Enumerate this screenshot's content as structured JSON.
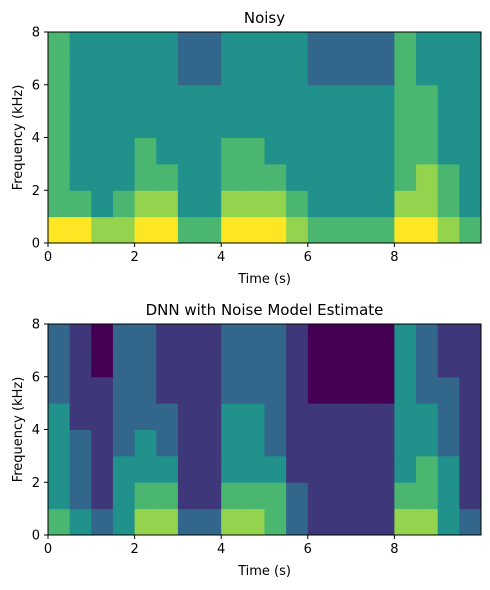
{
  "chart_data": [
    {
      "type": "spectrogram",
      "title": "Noisy",
      "xlabel": "Time (s)",
      "ylabel": "Frequency (kHz)",
      "xlim": [
        0,
        10
      ],
      "ylim": [
        0,
        8
      ],
      "xticks": [
        0,
        2,
        4,
        6,
        8
      ],
      "yticks": [
        0,
        2,
        4,
        6,
        8
      ],
      "z": [
        [
          8,
          8,
          7,
          7,
          8,
          8,
          6,
          6,
          8,
          8,
          8,
          7,
          6,
          6,
          6,
          6,
          8,
          8,
          7,
          6
        ],
        [
          6,
          6,
          5,
          6,
          7,
          7,
          5,
          5,
          7,
          7,
          7,
          6,
          5,
          5,
          5,
          5,
          7,
          7,
          6,
          5
        ],
        [
          6,
          5,
          5,
          5,
          6,
          6,
          5,
          5,
          6,
          6,
          6,
          5,
          5,
          5,
          5,
          5,
          6,
          7,
          6,
          5
        ],
        [
          6,
          5,
          5,
          5,
          6,
          5,
          5,
          5,
          6,
          6,
          5,
          5,
          5,
          5,
          5,
          5,
          6,
          6,
          5,
          5
        ],
        [
          6,
          5,
          5,
          5,
          5,
          5,
          5,
          5,
          5,
          5,
          5,
          5,
          5,
          5,
          5,
          5,
          6,
          6,
          5,
          5
        ],
        [
          6,
          5,
          5,
          5,
          5,
          5,
          5,
          5,
          5,
          5,
          5,
          5,
          5,
          5,
          5,
          5,
          6,
          6,
          5,
          5
        ],
        [
          6,
          5,
          5,
          5,
          5,
          5,
          4,
          4,
          5,
          5,
          5,
          5,
          4,
          4,
          4,
          4,
          6,
          5,
          5,
          5
        ],
        [
          6,
          5,
          5,
          5,
          5,
          5,
          4,
          4,
          5,
          5,
          5,
          5,
          4,
          4,
          4,
          4,
          6,
          5,
          5,
          5
        ]
      ]
    },
    {
      "type": "spectrogram",
      "title": "DNN with Noise Model Estimate",
      "xlabel": "Time (s)",
      "ylabel": "Frequency (kHz)",
      "xlim": [
        0,
        10
      ],
      "ylim": [
        0,
        8
      ],
      "xticks": [
        0,
        2,
        4,
        6,
        8
      ],
      "yticks": [
        0,
        2,
        4,
        6,
        8
      ],
      "z": [
        [
          6,
          5,
          4,
          5,
          7,
          7,
          4,
          4,
          7,
          7,
          6,
          4,
          3,
          3,
          3,
          3,
          7,
          7,
          5,
          4
        ],
        [
          5,
          4,
          3,
          5,
          6,
          6,
          3,
          3,
          6,
          6,
          6,
          4,
          3,
          3,
          3,
          3,
          6,
          6,
          5,
          3
        ],
        [
          5,
          4,
          3,
          5,
          5,
          5,
          3,
          3,
          5,
          5,
          5,
          3,
          3,
          3,
          3,
          3,
          5,
          6,
          5,
          3
        ],
        [
          5,
          4,
          3,
          4,
          5,
          4,
          3,
          3,
          5,
          5,
          4,
          3,
          3,
          3,
          3,
          3,
          5,
          5,
          4,
          3
        ],
        [
          5,
          3,
          3,
          4,
          4,
          4,
          3,
          3,
          5,
          5,
          4,
          3,
          3,
          3,
          3,
          3,
          5,
          5,
          4,
          3
        ],
        [
          4,
          3,
          3,
          4,
          4,
          3,
          3,
          3,
          4,
          4,
          4,
          3,
          2,
          2,
          2,
          2,
          5,
          4,
          4,
          3
        ],
        [
          4,
          3,
          2,
          4,
          4,
          3,
          3,
          3,
          4,
          4,
          4,
          3,
          2,
          2,
          2,
          2,
          5,
          4,
          3,
          3
        ],
        [
          4,
          3,
          2,
          4,
          4,
          3,
          3,
          3,
          4,
          4,
          4,
          3,
          2,
          2,
          2,
          2,
          5,
          4,
          3,
          3
        ]
      ]
    }
  ]
}
